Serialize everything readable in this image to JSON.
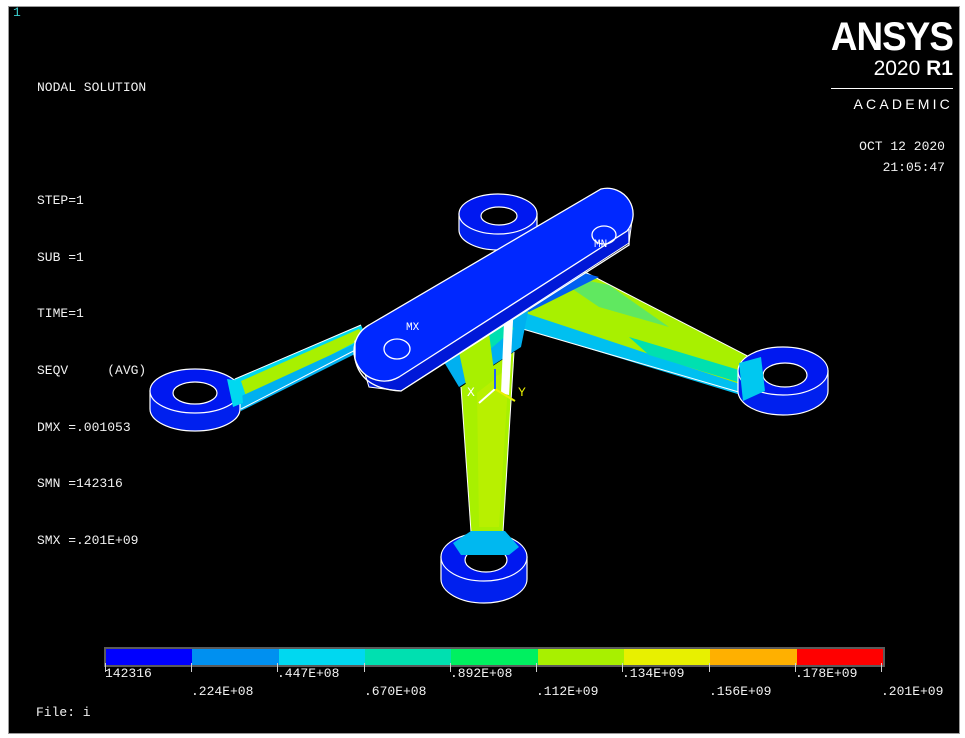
{
  "window_number": "1",
  "solution": {
    "lines": [
      "NODAL SOLUTION",
      "",
      "STEP=1",
      "SUB =1",
      "TIME=1",
      "SEQV     (AVG)",
      "DMX =.001053",
      "SMN =142316",
      "SMX =.201E+09"
    ]
  },
  "brand": {
    "name": "ANSYS",
    "version": "2020",
    "release": "R1",
    "edition": "ACADEMIC"
  },
  "date": "OCT 12 2020",
  "time": "21:05:47",
  "markers": {
    "max": "MX",
    "min": "MN"
  },
  "triad": {
    "x": "X",
    "y": "Y"
  },
  "legend": {
    "colors": [
      "#0000ff",
      "#0090f0",
      "#00d8f0",
      "#00e0b0",
      "#00f060",
      "#a8f000",
      "#e8f000",
      "#ffb000",
      "#ff0000"
    ],
    "labels_top": [
      "142316",
      ".447E+08",
      ".892E+08",
      ".134E+09",
      ".178E+09"
    ],
    "labels_bottom": [
      ".224E+08",
      ".670E+08",
      ".112E+09",
      ".156E+09",
      ".201E+09"
    ]
  },
  "file_label": "File: i"
}
